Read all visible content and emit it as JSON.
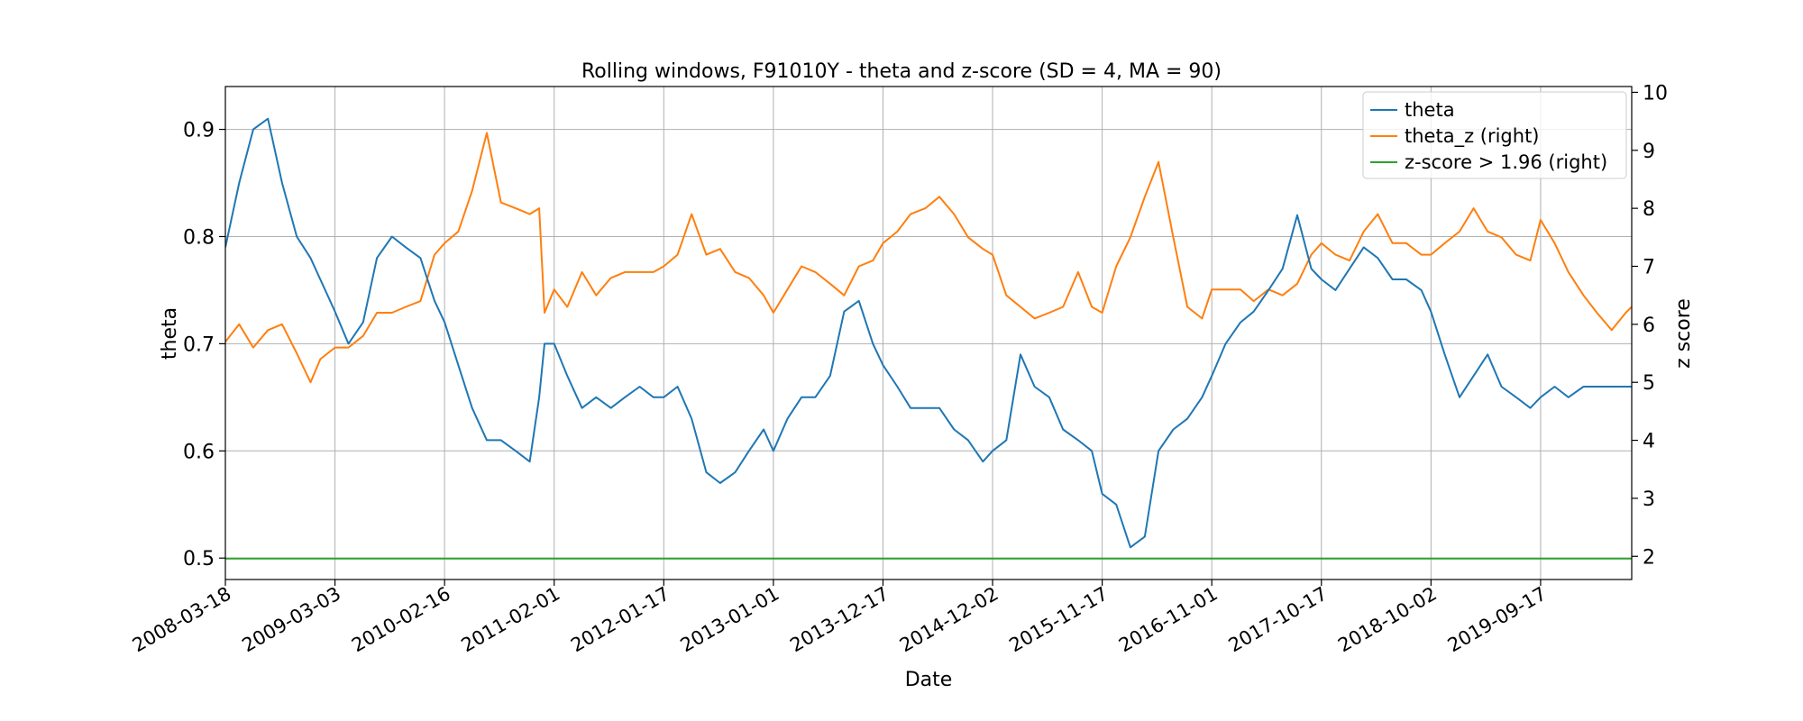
{
  "chart_data": {
    "type": "line",
    "title": "Rolling windows, F91010Y - theta and z-score (SD = 4, MA = 90)",
    "xlabel": "Date",
    "ylabel": "theta",
    "y2label": "z score",
    "x_ticks": [
      "2008-03-18",
      "2009-03-03",
      "2010-02-16",
      "2011-02-01",
      "2012-01-17",
      "2013-01-01",
      "2013-12-17",
      "2014-12-02",
      "2015-11-17",
      "2016-11-01",
      "2017-10-17",
      "2018-10-02",
      "2019-09-17"
    ],
    "xlim": [
      "2008-03-18",
      "2020-07-04"
    ],
    "ylim": [
      0.48,
      0.94
    ],
    "yticks": [
      "0.5",
      "0.6",
      "0.7",
      "0.8",
      "0.9"
    ],
    "y2lim": [
      1.6,
      10.1
    ],
    "y2ticks": [
      "2",
      "3",
      "4",
      "5",
      "6",
      "7",
      "8",
      "9",
      "10"
    ],
    "grid": true,
    "legend_position": "top-right",
    "series": [
      {
        "name": "theta",
        "axis": "left",
        "color": "#1f77b4",
        "x": [
          "2008-03-18",
          "2008-05-01",
          "2008-06-15",
          "2008-08-01",
          "2008-09-15",
          "2008-11-01",
          "2008-12-15",
          "2009-01-15",
          "2009-03-03",
          "2009-04-15",
          "2009-06-01",
          "2009-07-15",
          "2009-09-01",
          "2009-10-15",
          "2009-12-01",
          "2010-01-15",
          "2010-02-16",
          "2010-04-01",
          "2010-05-15",
          "2010-07-01",
          "2010-08-15",
          "2010-10-01",
          "2010-11-15",
          "2010-12-15",
          "2011-01-01",
          "2011-02-01",
          "2011-03-15",
          "2011-05-01",
          "2011-06-15",
          "2011-08-01",
          "2011-09-15",
          "2011-11-01",
          "2011-12-15",
          "2012-01-17",
          "2012-03-01",
          "2012-04-15",
          "2012-06-01",
          "2012-07-15",
          "2012-09-01",
          "2012-10-15",
          "2012-12-01",
          "2013-01-01",
          "2013-02-15",
          "2013-04-01",
          "2013-05-15",
          "2013-07-01",
          "2013-08-15",
          "2013-10-01",
          "2013-11-15",
          "2013-12-17",
          "2014-02-01",
          "2014-03-15",
          "2014-05-01",
          "2014-06-15",
          "2014-08-01",
          "2014-09-15",
          "2014-11-01",
          "2014-12-02",
          "2015-01-15",
          "2015-03-01",
          "2015-04-15",
          "2015-06-01",
          "2015-07-15",
          "2015-09-01",
          "2015-10-15",
          "2015-11-17",
          "2016-01-01",
          "2016-02-15",
          "2016-04-01",
          "2016-05-15",
          "2016-07-01",
          "2016-08-15",
          "2016-10-01",
          "2016-11-01",
          "2016-12-15",
          "2017-02-01",
          "2017-03-15",
          "2017-05-01",
          "2017-06-15",
          "2017-08-01",
          "2017-09-15",
          "2017-10-17",
          "2017-12-01",
          "2018-01-15",
          "2018-03-01",
          "2018-04-15",
          "2018-06-01",
          "2018-07-15",
          "2018-09-01",
          "2018-10-02",
          "2018-11-15",
          "2019-01-01",
          "2019-02-15",
          "2019-04-01",
          "2019-05-15",
          "2019-07-01",
          "2019-08-15",
          "2019-09-17",
          "2019-11-01",
          "2019-12-15",
          "2020-02-01",
          "2020-03-15",
          "2020-05-01",
          "2020-06-15",
          "2020-07-04"
        ],
        "values": [
          0.79,
          0.85,
          0.9,
          0.91,
          0.85,
          0.8,
          0.78,
          0.76,
          0.73,
          0.7,
          0.72,
          0.78,
          0.8,
          0.79,
          0.78,
          0.74,
          0.72,
          0.68,
          0.64,
          0.61,
          0.61,
          0.6,
          0.59,
          0.65,
          0.7,
          0.7,
          0.67,
          0.64,
          0.65,
          0.64,
          0.65,
          0.66,
          0.65,
          0.65,
          0.66,
          0.63,
          0.58,
          0.57,
          0.58,
          0.6,
          0.62,
          0.6,
          0.63,
          0.65,
          0.65,
          0.67,
          0.73,
          0.74,
          0.7,
          0.68,
          0.66,
          0.64,
          0.64,
          0.64,
          0.62,
          0.61,
          0.59,
          0.6,
          0.61,
          0.69,
          0.66,
          0.65,
          0.62,
          0.61,
          0.6,
          0.56,
          0.55,
          0.51,
          0.52,
          0.6,
          0.62,
          0.63,
          0.65,
          0.67,
          0.7,
          0.72,
          0.73,
          0.75,
          0.77,
          0.82,
          0.77,
          0.76,
          0.75,
          0.77,
          0.79,
          0.78,
          0.76,
          0.76,
          0.75,
          0.73,
          0.69,
          0.65,
          0.67,
          0.69,
          0.66,
          0.65,
          0.64,
          0.65,
          0.66,
          0.65,
          0.66,
          0.66,
          0.66,
          0.66,
          0.66
        ]
      },
      {
        "name": "theta_z (right)",
        "axis": "right",
        "color": "#ff7f0e",
        "x": [
          "2008-03-18",
          "2008-05-01",
          "2008-06-15",
          "2008-08-01",
          "2008-09-15",
          "2008-11-01",
          "2008-12-15",
          "2009-01-15",
          "2009-03-03",
          "2009-04-15",
          "2009-06-01",
          "2009-07-15",
          "2009-09-01",
          "2009-10-15",
          "2009-12-01",
          "2010-01-15",
          "2010-02-16",
          "2010-04-01",
          "2010-05-15",
          "2010-07-01",
          "2010-08-15",
          "2010-10-01",
          "2010-11-15",
          "2010-12-15",
          "2011-01-01",
          "2011-02-01",
          "2011-03-15",
          "2011-05-01",
          "2011-06-15",
          "2011-08-01",
          "2011-09-15",
          "2011-11-01",
          "2011-12-15",
          "2012-01-17",
          "2012-03-01",
          "2012-04-15",
          "2012-06-01",
          "2012-07-15",
          "2012-09-01",
          "2012-10-15",
          "2012-12-01",
          "2013-01-01",
          "2013-02-15",
          "2013-04-01",
          "2013-05-15",
          "2013-07-01",
          "2013-08-15",
          "2013-10-01",
          "2013-11-15",
          "2013-12-17",
          "2014-02-01",
          "2014-03-15",
          "2014-05-01",
          "2014-06-15",
          "2014-08-01",
          "2014-09-15",
          "2014-11-01",
          "2014-12-02",
          "2015-01-15",
          "2015-03-01",
          "2015-04-15",
          "2015-06-01",
          "2015-07-15",
          "2015-09-01",
          "2015-10-15",
          "2015-11-17",
          "2016-01-01",
          "2016-02-15",
          "2016-04-01",
          "2016-05-15",
          "2016-07-01",
          "2016-08-15",
          "2016-10-01",
          "2016-11-01",
          "2016-12-15",
          "2017-02-01",
          "2017-03-15",
          "2017-05-01",
          "2017-06-15",
          "2017-08-01",
          "2017-09-15",
          "2017-10-17",
          "2017-12-01",
          "2018-01-15",
          "2018-03-01",
          "2018-04-15",
          "2018-06-01",
          "2018-07-15",
          "2018-09-01",
          "2018-10-02",
          "2018-11-15",
          "2019-01-01",
          "2019-02-15",
          "2019-04-01",
          "2019-05-15",
          "2019-07-01",
          "2019-08-15",
          "2019-09-17",
          "2019-11-01",
          "2019-12-15",
          "2020-02-01",
          "2020-03-15",
          "2020-05-01",
          "2020-06-15",
          "2020-07-04"
        ],
        "values": [
          5.7,
          6.0,
          5.6,
          5.9,
          6.0,
          5.5,
          5.0,
          5.4,
          5.6,
          5.6,
          5.8,
          6.2,
          6.2,
          6.3,
          6.4,
          7.2,
          7.4,
          7.6,
          8.3,
          9.3,
          8.1,
          8.0,
          7.9,
          8.0,
          6.2,
          6.6,
          6.3,
          6.9,
          6.5,
          6.8,
          6.9,
          6.9,
          6.9,
          7.0,
          7.2,
          7.9,
          7.2,
          7.3,
          6.9,
          6.8,
          6.5,
          6.2,
          6.6,
          7.0,
          6.9,
          6.7,
          6.5,
          7.0,
          7.1,
          7.4,
          7.6,
          7.9,
          8.0,
          8.2,
          7.9,
          7.5,
          7.3,
          7.2,
          6.5,
          6.3,
          6.1,
          6.2,
          6.3,
          6.9,
          6.3,
          6.2,
          7.0,
          7.5,
          8.2,
          8.8,
          7.5,
          6.3,
          6.1,
          6.6,
          6.6,
          6.6,
          6.4,
          6.6,
          6.5,
          6.7,
          7.2,
          7.4,
          7.2,
          7.1,
          7.6,
          7.9,
          7.4,
          7.4,
          7.2,
          7.2,
          7.4,
          7.6,
          8.0,
          7.6,
          7.5,
          7.2,
          7.1,
          7.8,
          7.4,
          6.9,
          6.5,
          6.2,
          5.9,
          6.2,
          6.3
        ]
      },
      {
        "name": "z-score > 1.96 (right)",
        "axis": "right",
        "color": "#2ca02c",
        "x": [
          "2008-03-18",
          "2020-07-04"
        ],
        "values": [
          1.96,
          1.96
        ]
      }
    ]
  }
}
